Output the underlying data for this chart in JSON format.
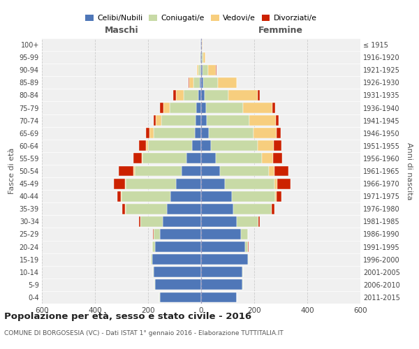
{
  "age_groups": [
    "0-4",
    "5-9",
    "10-14",
    "15-19",
    "20-24",
    "25-29",
    "30-34",
    "35-39",
    "40-44",
    "45-49",
    "50-54",
    "55-59",
    "60-64",
    "65-69",
    "70-74",
    "75-79",
    "80-84",
    "85-89",
    "90-94",
    "95-99",
    "100+"
  ],
  "birth_years": [
    "2011-2015",
    "2006-2010",
    "2001-2005",
    "1996-2000",
    "1991-1995",
    "1986-1990",
    "1981-1985",
    "1976-1980",
    "1971-1975",
    "1966-1970",
    "1961-1965",
    "1956-1960",
    "1951-1955",
    "1946-1950",
    "1941-1945",
    "1936-1940",
    "1931-1935",
    "1926-1930",
    "1921-1925",
    "1916-1920",
    "≤ 1915"
  ],
  "colors": {
    "celibe": "#4f77b8",
    "coniugato": "#c8daa6",
    "vedovo": "#f7ce7e",
    "divorziato": "#cc2200"
  },
  "males": {
    "celibe": [
      155,
      175,
      180,
      185,
      175,
      155,
      145,
      130,
      115,
      95,
      75,
      55,
      35,
      25,
      20,
      18,
      10,
      5,
      2,
      2,
      2
    ],
    "coniugato": [
      2,
      2,
      2,
      5,
      10,
      25,
      85,
      155,
      185,
      190,
      175,
      165,
      165,
      155,
      130,
      100,
      55,
      25,
      8,
      2,
      0
    ],
    "vedovo": [
      0,
      0,
      0,
      0,
      0,
      0,
      0,
      2,
      2,
      3,
      5,
      5,
      8,
      15,
      20,
      25,
      30,
      15,
      5,
      2,
      0
    ],
    "divorziato": [
      0,
      0,
      0,
      0,
      0,
      2,
      5,
      10,
      15,
      40,
      55,
      30,
      25,
      12,
      10,
      12,
      10,
      2,
      0,
      0,
      0
    ]
  },
  "females": {
    "nubile": [
      135,
      155,
      155,
      175,
      165,
      150,
      135,
      120,
      115,
      90,
      70,
      55,
      38,
      28,
      22,
      18,
      12,
      8,
      5,
      2,
      2
    ],
    "coniugata": [
      0,
      2,
      2,
      5,
      12,
      25,
      80,
      145,
      165,
      185,
      185,
      175,
      175,
      170,
      160,
      140,
      90,
      55,
      20,
      5,
      0
    ],
    "vedova": [
      0,
      0,
      0,
      0,
      0,
      0,
      2,
      2,
      5,
      12,
      20,
      40,
      60,
      85,
      100,
      110,
      110,
      70,
      30,
      8,
      2
    ],
    "divorziata": [
      0,
      0,
      0,
      0,
      2,
      2,
      5,
      10,
      18,
      50,
      55,
      35,
      30,
      18,
      10,
      12,
      10,
      2,
      2,
      0,
      0
    ]
  },
  "xlim": 600,
  "title": "Popolazione per età, sesso e stato civile - 2016",
  "subtitle": "COMUNE DI BORGOSESIA (VC) - Dati ISTAT 1° gennaio 2016 - Elaborazione TUTTITALIA.IT",
  "ylabel_left": "Fasce di età",
  "ylabel_right": "Anni di nascita",
  "xlabel_left": "Maschi",
  "xlabel_right": "Femmine",
  "bg_color": "#f0f0f0",
  "grid_color": "#cccccc"
}
